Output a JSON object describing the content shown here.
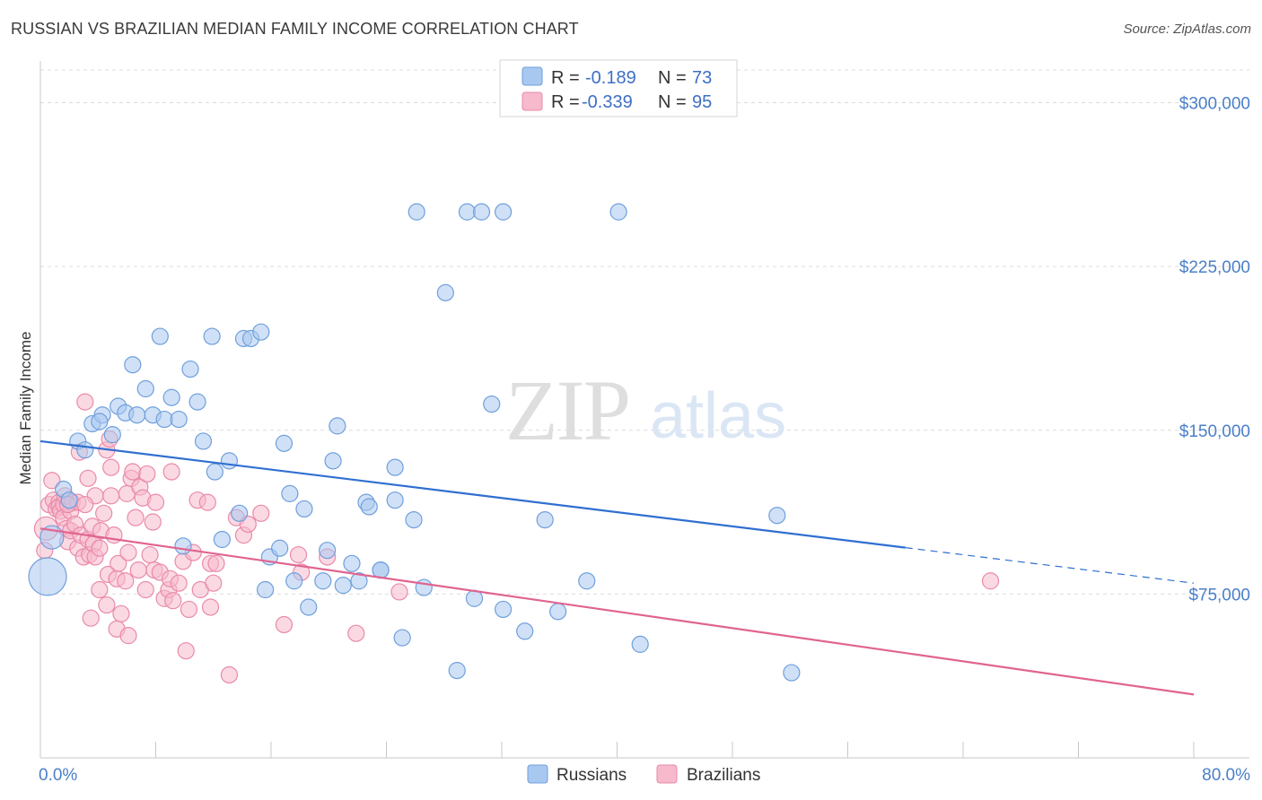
{
  "title": "RUSSIAN VS BRAZILIAN MEDIAN FAMILY INCOME CORRELATION CHART",
  "source": "Source: ZipAtlas.com",
  "watermark": {
    "zip": "ZIP",
    "atlas": "atlas"
  },
  "colors": {
    "russians_fill": "#a9c8f0",
    "russians_stroke": "#6f9fdc",
    "russians_line": "#2f6fd1",
    "brazilians_fill": "#f7b9cc",
    "brazilians_stroke": "#e98aa9",
    "brazilians_line": "#e0648f",
    "tick_color": "#4a7fc9",
    "grid": "#dcdcdc"
  },
  "legend_top": {
    "russians": {
      "r_label": "R =",
      "r_value": "-0.189",
      "n_label": "N =",
      "n_value": "73"
    },
    "brazilians": {
      "r_label": "R =",
      "r_value": "-0.339",
      "n_label": "N =",
      "n_value": "95"
    }
  },
  "chart_data": {
    "type": "scatter",
    "title": "RUSSIAN VS BRAZILIAN MEDIAN FAMILY INCOME CORRELATION CHART",
    "xlabel": "",
    "ylabel": "Median Family Income",
    "xlim": [
      0,
      80
    ],
    "ylim": [
      0,
      315000
    ],
    "x_tick_labels": [
      "0.0%",
      "80.0%"
    ],
    "y_ticks": [
      75000,
      150000,
      225000,
      300000
    ],
    "y_tick_labels": [
      "$75,000",
      "$150,000",
      "$225,000",
      "$300,000"
    ],
    "grid": true,
    "legend_placement": "top-center and bottom",
    "series": [
      {
        "name": "Russians",
        "r": -0.189,
        "n": 73,
        "trend": {
          "x0": 0,
          "y0": 145000,
          "x1": 80,
          "y1": 80000,
          "solid_until_x": 60
        },
        "points": [
          [
            0.5,
            83000,
            3
          ],
          [
            0.8,
            101000,
            2
          ],
          [
            1.6,
            123000,
            1
          ],
          [
            2.0,
            118000,
            1
          ],
          [
            2.6,
            145000,
            1
          ],
          [
            3.1,
            141000,
            1
          ],
          [
            3.6,
            153000,
            1
          ],
          [
            4.3,
            157000,
            1
          ],
          [
            5.0,
            148000,
            1
          ],
          [
            4.1,
            154000,
            1
          ],
          [
            5.4,
            161000,
            1
          ],
          [
            5.9,
            158000,
            1
          ],
          [
            6.4,
            180000,
            1
          ],
          [
            6.7,
            157000,
            1
          ],
          [
            7.3,
            169000,
            1
          ],
          [
            7.8,
            157000,
            1
          ],
          [
            8.3,
            193000,
            1
          ],
          [
            8.6,
            155000,
            1
          ],
          [
            9.1,
            165000,
            1
          ],
          [
            9.6,
            155000,
            1
          ],
          [
            9.9,
            97000,
            1
          ],
          [
            10.4,
            178000,
            1
          ],
          [
            10.9,
            163000,
            1
          ],
          [
            11.3,
            145000,
            1
          ],
          [
            11.9,
            193000,
            1
          ],
          [
            12.1,
            131000,
            1
          ],
          [
            12.6,
            100000,
            1
          ],
          [
            13.1,
            136000,
            1
          ],
          [
            13.8,
            112000,
            1
          ],
          [
            14.1,
            192000,
            1
          ],
          [
            14.6,
            192000,
            1
          ],
          [
            15.3,
            195000,
            1
          ],
          [
            15.6,
            77000,
            1
          ],
          [
            15.9,
            92000,
            1
          ],
          [
            16.6,
            96000,
            1
          ],
          [
            16.9,
            144000,
            1
          ],
          [
            17.3,
            121000,
            1
          ],
          [
            17.6,
            81000,
            1
          ],
          [
            18.3,
            114000,
            1
          ],
          [
            18.6,
            69000,
            1
          ],
          [
            19.6,
            81000,
            1
          ],
          [
            19.9,
            95000,
            1
          ],
          [
            20.3,
            136000,
            1
          ],
          [
            20.6,
            152000,
            1
          ],
          [
            21.0,
            79000,
            1
          ],
          [
            21.6,
            89000,
            1
          ],
          [
            22.1,
            81000,
            1
          ],
          [
            22.6,
            117000,
            1
          ],
          [
            22.8,
            115000,
            1
          ],
          [
            23.6,
            86000,
            1
          ],
          [
            24.6,
            133000,
            1
          ],
          [
            24.6,
            118000,
            1
          ],
          [
            25.1,
            55000,
            1
          ],
          [
            25.9,
            109000,
            1
          ],
          [
            26.1,
            250000,
            1
          ],
          [
            26.6,
            78000,
            1
          ],
          [
            28.1,
            213000,
            1
          ],
          [
            28.9,
            40000,
            1
          ],
          [
            29.6,
            250000,
            1
          ],
          [
            30.6,
            250000,
            1
          ],
          [
            30.1,
            73000,
            1
          ],
          [
            31.3,
            162000,
            1
          ],
          [
            32.1,
            68000,
            1
          ],
          [
            32.1,
            250000,
            1
          ],
          [
            33.6,
            58000,
            1
          ],
          [
            35.0,
            109000,
            1
          ],
          [
            35.9,
            67000,
            1
          ],
          [
            37.9,
            81000,
            1
          ],
          [
            40.1,
            250000,
            1
          ],
          [
            41.6,
            52000,
            1
          ],
          [
            51.1,
            111000,
            1
          ],
          [
            52.1,
            39000,
            1
          ],
          [
            23.6,
            86000,
            1
          ]
        ]
      },
      {
        "name": "Brazilians",
        "r": -0.339,
        "n": 95,
        "trend": {
          "x0": 0,
          "y0": 105000,
          "x1": 80,
          "y1": 29000
        },
        "points": [
          [
            0.3,
            95000,
            1
          ],
          [
            0.4,
            105000,
            2
          ],
          [
            0.6,
            116000,
            1
          ],
          [
            0.8,
            127000,
            1
          ],
          [
            0.9,
            118000,
            1
          ],
          [
            1.1,
            114000,
            1
          ],
          [
            1.3,
            117000,
            1
          ],
          [
            1.3,
            115000,
            1
          ],
          [
            1.4,
            113000,
            1
          ],
          [
            1.6,
            116000,
            1
          ],
          [
            1.6,
            110000,
            1
          ],
          [
            1.7,
            120000,
            1
          ],
          [
            1.8,
            105000,
            1
          ],
          [
            1.9,
            99000,
            1
          ],
          [
            2.1,
            113000,
            1
          ],
          [
            2.1,
            104000,
            1
          ],
          [
            2.2,
            117000,
            1
          ],
          [
            2.4,
            107000,
            1
          ],
          [
            2.6,
            96000,
            1
          ],
          [
            2.7,
            140000,
            1
          ],
          [
            2.8,
            102000,
            1
          ],
          [
            3.0,
            92000,
            1
          ],
          [
            3.1,
            163000,
            1
          ],
          [
            3.3,
            128000,
            1
          ],
          [
            3.3,
            100000,
            1
          ],
          [
            3.4,
            93000,
            1
          ],
          [
            3.5,
            64000,
            1
          ],
          [
            3.6,
            106000,
            1
          ],
          [
            3.7,
            98000,
            1
          ],
          [
            3.8,
            92000,
            1
          ],
          [
            3.8,
            120000,
            1
          ],
          [
            4.1,
            96000,
            1
          ],
          [
            4.1,
            77000,
            1
          ],
          [
            4.2,
            104000,
            1
          ],
          [
            4.4,
            112000,
            1
          ],
          [
            4.6,
            141000,
            1
          ],
          [
            4.6,
            70000,
            1
          ],
          [
            4.7,
            84000,
            1
          ],
          [
            4.8,
            146000,
            1
          ],
          [
            4.9,
            133000,
            1
          ],
          [
            4.9,
            120000,
            1
          ],
          [
            5.1,
            102000,
            1
          ],
          [
            5.3,
            59000,
            1
          ],
          [
            5.3,
            82000,
            1
          ],
          [
            5.4,
            89000,
            1
          ],
          [
            5.6,
            66000,
            1
          ],
          [
            5.9,
            81000,
            1
          ],
          [
            6.0,
            121000,
            1
          ],
          [
            6.1,
            94000,
            1
          ],
          [
            6.3,
            128000,
            1
          ],
          [
            6.1,
            56000,
            1
          ],
          [
            6.4,
            131000,
            1
          ],
          [
            6.6,
            110000,
            1
          ],
          [
            6.8,
            86000,
            1
          ],
          [
            6.9,
            124000,
            1
          ],
          [
            7.1,
            119000,
            1
          ],
          [
            7.3,
            77000,
            1
          ],
          [
            7.4,
            130000,
            1
          ],
          [
            7.6,
            93000,
            1
          ],
          [
            7.8,
            108000,
            1
          ],
          [
            7.9,
            86000,
            1
          ],
          [
            8.0,
            117000,
            1
          ],
          [
            8.3,
            85000,
            1
          ],
          [
            8.6,
            73000,
            1
          ],
          [
            8.9,
            77000,
            1
          ],
          [
            9.0,
            82000,
            1
          ],
          [
            9.2,
            72000,
            1
          ],
          [
            9.1,
            131000,
            1
          ],
          [
            9.6,
            80000,
            1
          ],
          [
            9.9,
            90000,
            1
          ],
          [
            10.1,
            49000,
            1
          ],
          [
            10.3,
            68000,
            1
          ],
          [
            10.6,
            94000,
            1
          ],
          [
            10.9,
            118000,
            1
          ],
          [
            11.1,
            77000,
            1
          ],
          [
            11.6,
            117000,
            1
          ],
          [
            11.8,
            89000,
            1
          ],
          [
            12.0,
            80000,
            1
          ],
          [
            11.8,
            69000,
            1
          ],
          [
            13.1,
            38000,
            1
          ],
          [
            13.6,
            110000,
            1
          ],
          [
            14.1,
            102000,
            1
          ],
          [
            14.4,
            107000,
            1
          ],
          [
            15.3,
            112000,
            1
          ],
          [
            16.9,
            61000,
            1
          ],
          [
            17.9,
            93000,
            1
          ],
          [
            18.1,
            85000,
            1
          ],
          [
            19.9,
            92000,
            1
          ],
          [
            21.9,
            57000,
            1
          ],
          [
            24.9,
            76000,
            1
          ],
          [
            65.9,
            81000,
            1
          ],
          [
            2.6,
            117000,
            1
          ],
          [
            3.1,
            116000,
            1
          ],
          [
            1.9,
            116000,
            1
          ],
          [
            12.2,
            89000,
            1
          ]
        ]
      }
    ]
  },
  "bottom_legend": {
    "russians": "Russians",
    "brazilians": "Brazilians"
  }
}
